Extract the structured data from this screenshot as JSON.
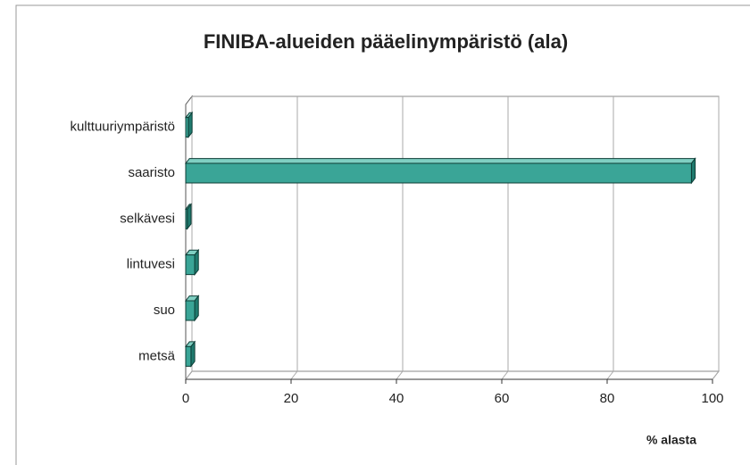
{
  "chart_data": {
    "type": "bar3d_horizontal",
    "title": "FINIBA-alueiden pääelinympäristö (ala)",
    "categories": [
      "kulttuuriympäristö",
      "saaristo",
      "selkävesi",
      "lintuvesi",
      "suo",
      "metsä"
    ],
    "values": [
      0.5,
      96,
      0.3,
      1.7,
      1.7,
      1
    ],
    "color": "#3aa597",
    "xlim": [
      0,
      100
    ],
    "xticks": [
      0,
      20,
      40,
      60,
      80,
      100
    ],
    "xlabel": "% alasta",
    "grid": true
  }
}
